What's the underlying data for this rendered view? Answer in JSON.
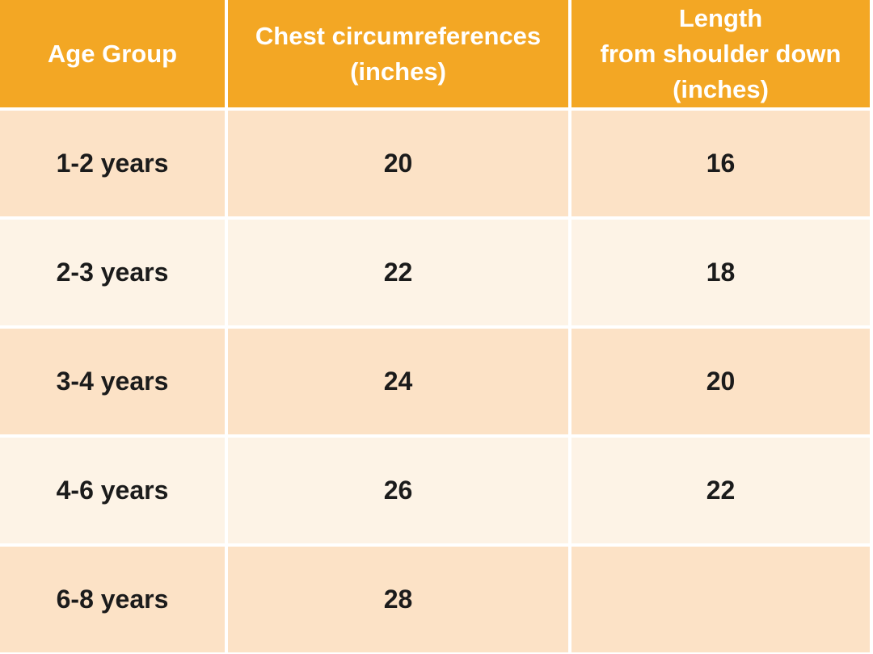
{
  "colors": {
    "header_bg": "#F3A724",
    "header_text": "#FFFFFF",
    "row_odd_bg": "#FCE2C6",
    "row_even_bg": "#FDF3E6",
    "body_text": "#1B1B1B",
    "separator": "#FFFFFF"
  },
  "table": {
    "headers": [
      {
        "lines": [
          "Age Group"
        ]
      },
      {
        "lines": [
          "Chest circumreferences",
          "(inches)"
        ]
      },
      {
        "lines": [
          "Length",
          "from shoulder down",
          "(inches)"
        ]
      }
    ],
    "rows": [
      {
        "age_group": "1-2 years",
        "chest": "20",
        "length": "16"
      },
      {
        "age_group": "2-3 years",
        "chest": "22",
        "length": "18"
      },
      {
        "age_group": "3-4 years",
        "chest": "24",
        "length": "20"
      },
      {
        "age_group": "4-6 years",
        "chest": "26",
        "length": "22"
      },
      {
        "age_group": "6-8 years",
        "chest": "28",
        "length": ""
      }
    ]
  },
  "chart_data": {
    "type": "table",
    "title": "",
    "columns": [
      "Age Group",
      "Chest circumreferences (inches)",
      "Length from shoulder down (inches)"
    ],
    "rows": [
      [
        "1-2 years",
        20,
        16
      ],
      [
        "2-3 years",
        22,
        18
      ],
      [
        "3-4 years",
        24,
        20
      ],
      [
        "4-6 years",
        26,
        22
      ],
      [
        "6-8 years",
        28,
        null
      ]
    ],
    "layout_hints": {
      "header_fill": "#F3A724",
      "alternating_row_fills": [
        "#FCE2C6",
        "#FDF3E6"
      ],
      "gridlines": "white 4px gutters",
      "text_alignment": "center"
    }
  }
}
